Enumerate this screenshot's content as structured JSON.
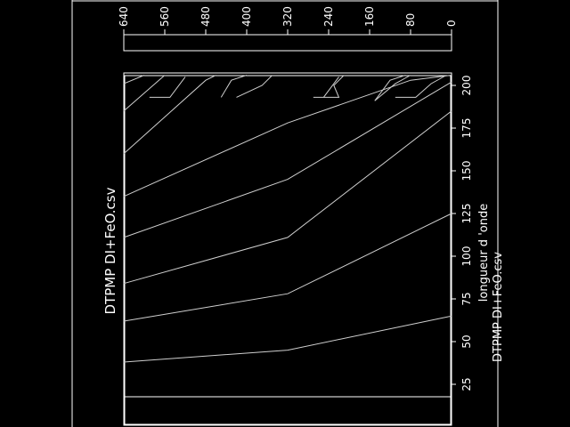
{
  "chart_data": {
    "type": "line",
    "title": "DTPMP DI+FeO.csv",
    "xlabel": "longueur d 'onde",
    "ylabel": "",
    "footer_text": "DTPMP DI+FeO.csv",
    "xlim": [
      10,
      205
    ],
    "ylim": [
      0,
      640
    ],
    "x_ticks": [
      25,
      50,
      75,
      100,
      125,
      150,
      175,
      200
    ],
    "y_ticks": [
      640,
      560,
      480,
      400,
      320,
      240,
      160,
      80,
      0
    ],
    "grid": false,
    "series": [
      {
        "points": [
          [
            38,
            640
          ],
          [
            45,
            320
          ],
          [
            65,
            0
          ]
        ]
      },
      {
        "points": [
          [
            62,
            640
          ],
          [
            78,
            320
          ],
          [
            125,
            0
          ]
        ]
      },
      {
        "points": [
          [
            84,
            640
          ],
          [
            111,
            320
          ],
          [
            185,
            0
          ]
        ]
      },
      {
        "points": [
          [
            111,
            640
          ],
          [
            145,
            320
          ],
          [
            202,
            0
          ]
        ]
      },
      {
        "points": [
          [
            135,
            640
          ],
          [
            178,
            320
          ],
          [
            203,
            80
          ],
          [
            206,
            0
          ]
        ]
      },
      {
        "points": [
          [
            160,
            640
          ],
          [
            203,
            480
          ],
          [
            206,
            460
          ]
        ]
      },
      {
        "points": [
          [
            185,
            640
          ],
          [
            206,
            560
          ]
        ]
      },
      {
        "points": [
          [
            201,
            640
          ],
          [
            206,
            600
          ]
        ]
      },
      {
        "points": [
          [
            193,
            590
          ],
          [
            193,
            550
          ],
          [
            205,
            520
          ]
        ]
      },
      {
        "points": [
          [
            193,
            450
          ],
          [
            203,
            430
          ],
          [
            206,
            400
          ]
        ]
      },
      {
        "points": [
          [
            193,
            420
          ],
          [
            200,
            370
          ],
          [
            206,
            350
          ]
        ]
      },
      {
        "points": [
          [
            193,
            270
          ],
          [
            193,
            220
          ],
          [
            200,
            230
          ],
          [
            206,
            210
          ]
        ]
      },
      {
        "points": [
          [
            193,
            250
          ],
          [
            205,
            220
          ]
        ]
      },
      {
        "points": [
          [
            191,
            150
          ],
          [
            203,
            120
          ],
          [
            206,
            90
          ]
        ]
      },
      {
        "points": [
          [
            193,
            110
          ],
          [
            193,
            70
          ],
          [
            201,
            40
          ],
          [
            206,
            10
          ]
        ]
      },
      {
        "points": [
          [
            191,
            150
          ],
          [
            201,
            110
          ],
          [
            206,
            80
          ]
        ]
      }
    ]
  }
}
